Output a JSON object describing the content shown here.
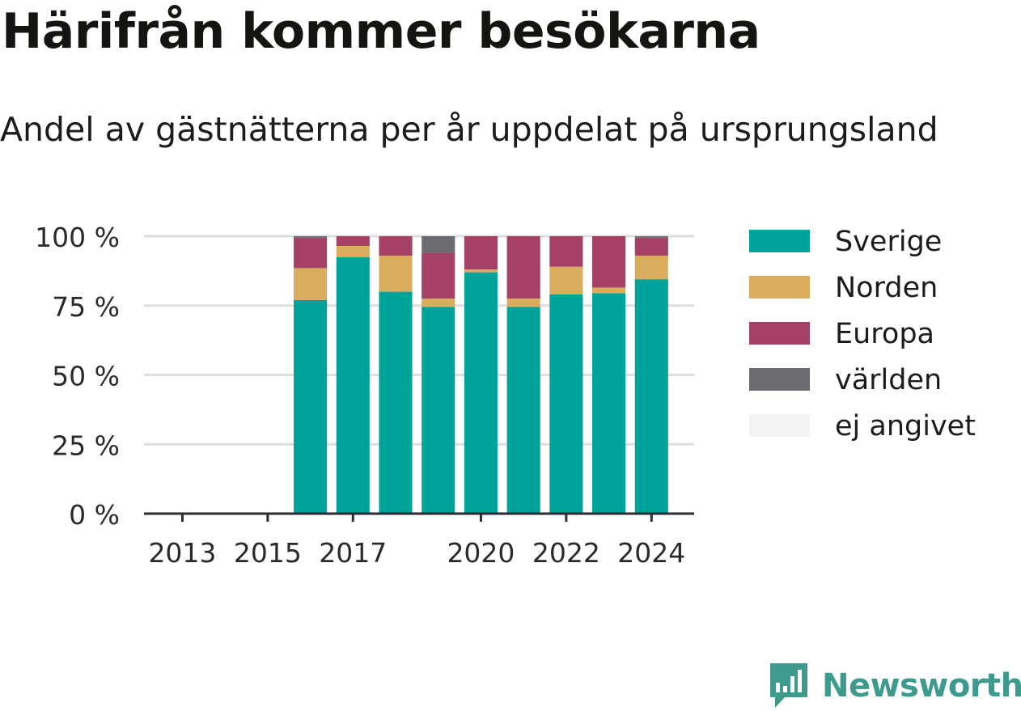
{
  "title": "Härifrån kommer besökarna",
  "subtitle": "Andel av gästnätterna per år uppdelat på ursprungsland",
  "brand": {
    "name": "Newsworthy",
    "logo_icon": "bar-chart-speech-bubble-icon",
    "color": "#3f9a8e"
  },
  "chart_data": {
    "type": "bar",
    "stacked": true,
    "x": [
      2016,
      2017,
      2018,
      2019,
      2020,
      2021,
      2022,
      2023,
      2024
    ],
    "x_ticks": [
      "2013",
      "2015",
      "2017",
      "2020",
      "2022",
      "2024"
    ],
    "x_tick_values": [
      2013,
      2015,
      2017,
      2020,
      2022,
      2024
    ],
    "xlim": [
      2012.1,
      2025
    ],
    "ylim": [
      0,
      100
    ],
    "y_ticks": [
      "0 %",
      "25 %",
      "50 %",
      "75 %",
      "100 %"
    ],
    "y_tick_values": [
      0,
      25,
      50,
      75,
      100
    ],
    "grid": true,
    "legend_placement": "right",
    "series": [
      {
        "name": "Sverige",
        "color": "#00a39a",
        "values": [
          77,
          92.5,
          80,
          74.5,
          87,
          74.5,
          79,
          79.5,
          84.5
        ]
      },
      {
        "name": "Norden",
        "color": "#d9ad5b",
        "values": [
          11.5,
          4,
          13,
          3,
          1,
          3,
          10,
          2,
          8.5
        ]
      },
      {
        "name": "Europa",
        "color": "#a54066",
        "values": [
          11,
          3.5,
          7,
          16.5,
          12,
          22.5,
          11,
          18.5,
          6.5
        ]
      },
      {
        "name": "världen",
        "color": "#6c6b72",
        "values": [
          0.5,
          0,
          0,
          6,
          0,
          0,
          0,
          0,
          0.5
        ]
      },
      {
        "name": "ej angivet",
        "color": "#f3f3f3",
        "values": [
          0,
          0,
          0,
          0,
          0,
          0,
          0,
          0,
          0
        ]
      }
    ]
  }
}
